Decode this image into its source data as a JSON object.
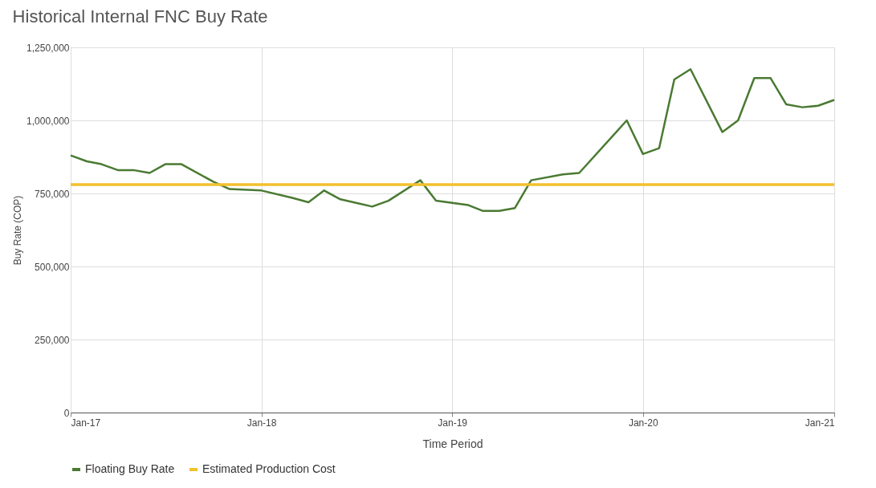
{
  "chart_data": {
    "type": "line",
    "title": "Historical Internal FNC Buy Rate",
    "xlabel": "Time Period",
    "ylabel": "Buy Rate (COP)",
    "xlim": [
      "2017-01",
      "2021-01"
    ],
    "xticks": [
      {
        "value": "2017-01",
        "label": "Jan-17"
      },
      {
        "value": "2018-01",
        "label": "Jan-18"
      },
      {
        "value": "2019-01",
        "label": "Jan-19"
      },
      {
        "value": "2020-01",
        "label": "Jan-20"
      },
      {
        "value": "2021-01",
        "label": "Jan-21"
      }
    ],
    "ylim": [
      0,
      1250000
    ],
    "yticks": [
      0,
      {
        "value": 250000,
        "label": "250,000"
      },
      {
        "value": 500000,
        "label": "500,000"
      },
      {
        "value": 750000,
        "label": "750,000"
      },
      {
        "value": 1000000,
        "label": "1,000,000"
      },
      {
        "value": 1250000,
        "label": "1,250,000"
      }
    ],
    "grid": true,
    "legend": "bottom",
    "marker": "none",
    "line_style": "solid",
    "series": [
      {
        "name": "Floating Buy Rate",
        "color": "#4a7a32",
        "x": [
          "2017-01",
          "2017-02",
          "2017-03",
          "2017-04",
          "2017-05",
          "2017-06",
          "2017-07",
          "2017-08",
          "2017-10",
          "2017-11",
          "2018-01",
          "2018-03",
          "2018-04",
          "2018-05",
          "2018-06",
          "2018-08",
          "2018-09",
          "2018-11",
          "2018-12",
          "2019-02",
          "2019-03",
          "2019-04",
          "2019-05",
          "2019-06",
          "2019-08",
          "2019-09",
          "2019-12",
          "2020-01",
          "2020-02",
          "2020-03",
          "2020-04",
          "2020-06",
          "2020-07",
          "2020-08",
          "2020-09",
          "2020-10",
          "2020-11",
          "2020-12",
          "2021-01"
        ],
        "values": [
          880000,
          860000,
          850000,
          830000,
          830000,
          820000,
          850000,
          850000,
          790000,
          765000,
          760000,
          735000,
          720000,
          760000,
          730000,
          705000,
          725000,
          795000,
          725000,
          710000,
          690000,
          690000,
          700000,
          795000,
          815000,
          820000,
          1000000,
          885000,
          905000,
          1140000,
          1175000,
          960000,
          1000000,
          1145000,
          1145000,
          1055000,
          1045000,
          1050000,
          1070000
        ]
      },
      {
        "name": "Estimated Production Cost",
        "color": "#f2c12e",
        "x": [
          "2017-01",
          "2021-01"
        ],
        "values": [
          780000,
          780000
        ]
      }
    ]
  }
}
